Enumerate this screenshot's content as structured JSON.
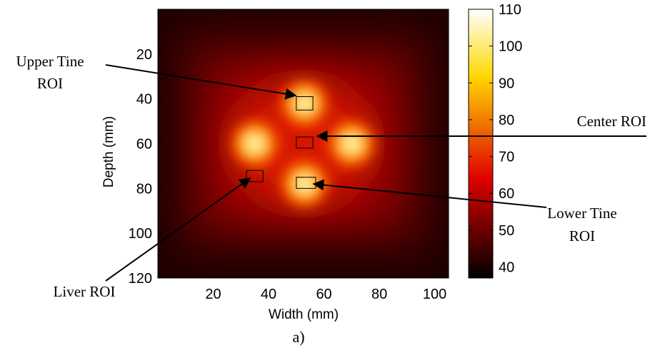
{
  "chart_data": {
    "type": "heatmap",
    "title": "",
    "xlabel": "Width (mm)",
    "ylabel": "Depth (mm)",
    "xlim": [
      0,
      105
    ],
    "ylim": [
      120,
      0
    ],
    "xticks": [
      20,
      40,
      60,
      80,
      100
    ],
    "yticks": [
      20,
      40,
      60,
      80,
      100,
      120
    ],
    "colormap": "hot",
    "colorbar": {
      "range": [
        37,
        110
      ],
      "ticks": [
        40,
        50,
        60,
        70,
        80,
        90,
        100,
        110
      ]
    },
    "hotspots": [
      {
        "x": 35,
        "y": 60,
        "value": 108
      },
      {
        "x": 53,
        "y": 42,
        "value": 110
      },
      {
        "x": 70,
        "y": 60,
        "value": 108
      },
      {
        "x": 53,
        "y": 78,
        "value": 110
      }
    ],
    "rois": [
      {
        "label": "Upper Tine ROI",
        "x": [
          50,
          56
        ],
        "y": [
          39,
          45
        ]
      },
      {
        "label": "Center ROI",
        "x": [
          50,
          56
        ],
        "y": [
          57,
          62
        ]
      },
      {
        "label": "Lower Tine ROI",
        "x": [
          50,
          57
        ],
        "y": [
          75,
          80
        ]
      },
      {
        "label": "Liver ROI",
        "x": [
          32,
          38
        ],
        "y": [
          72,
          77
        ]
      }
    ]
  },
  "annotations": {
    "upper_tine_line1": "Upper Tine",
    "upper_tine_line2": "ROI",
    "center": "Center ROI",
    "lower_tine_line1": "Lower Tine",
    "lower_tine_line2": "ROI",
    "liver": "Liver ROI"
  },
  "caption": "a)"
}
